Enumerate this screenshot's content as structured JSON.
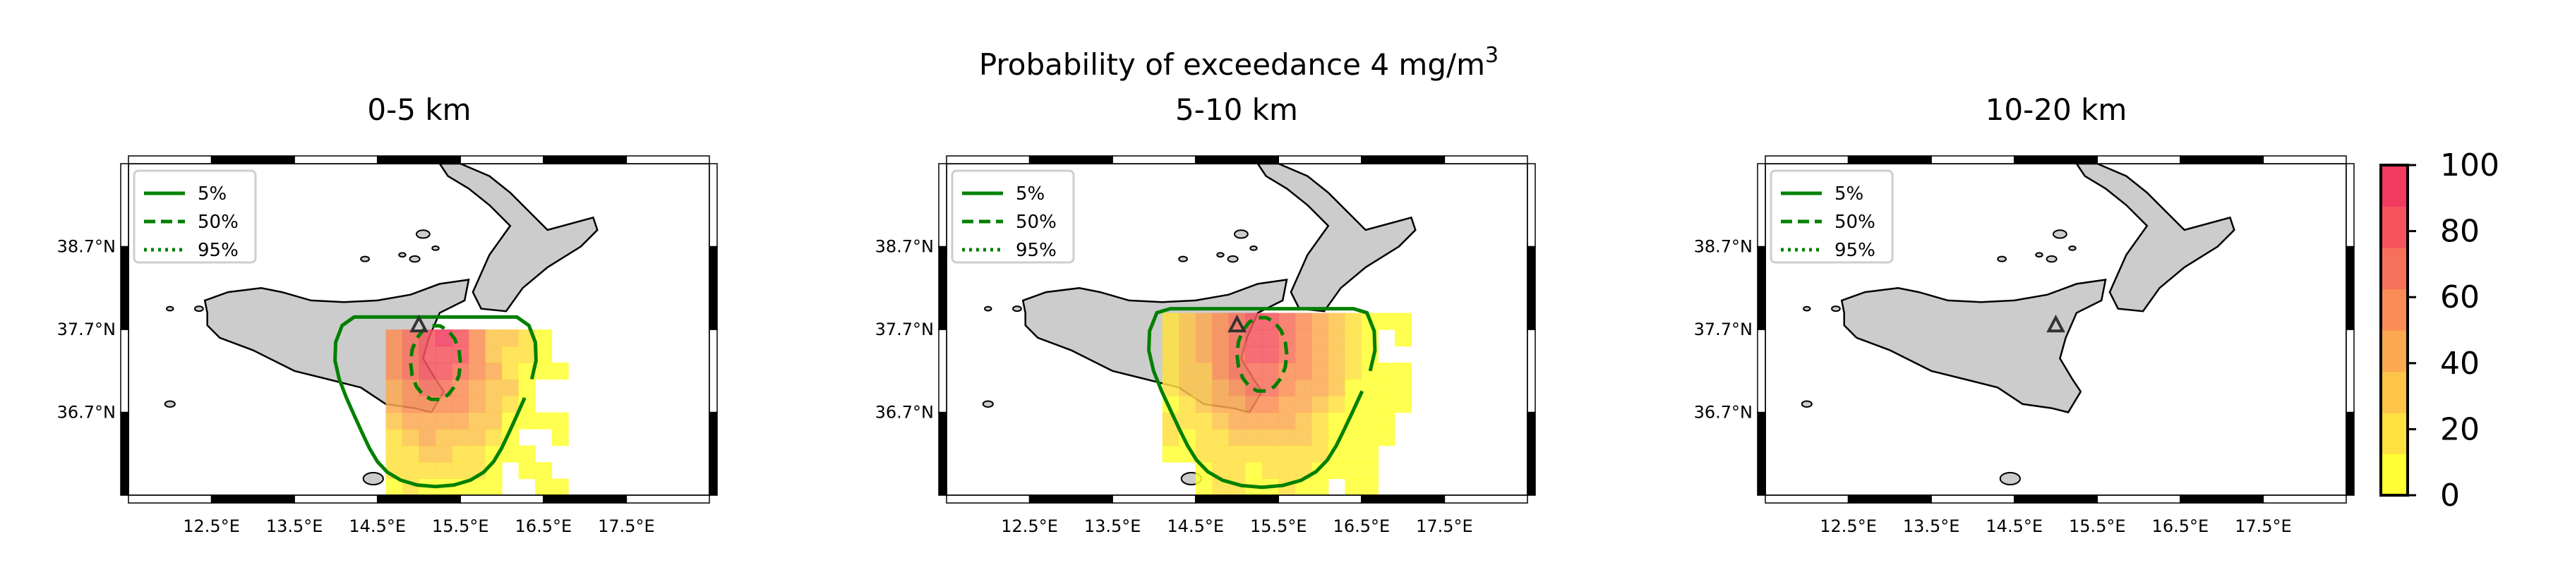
{
  "figure": {
    "title_main": "Probability of exceedance 4 mg/m",
    "title_sup": "3"
  },
  "colors": {
    "land": "#cccccc",
    "coast": "#000000",
    "contour": "#008000",
    "vent_marker": "#333333",
    "colormap": [
      "#ffff33",
      "#fee040",
      "#fdc44a",
      "#fca951",
      "#fa8d55",
      "#f7705a",
      "#f5545e",
      "#f33a5f"
    ]
  },
  "chart_data": [
    {
      "type": "heatmap",
      "title": "0-5 km",
      "x_ticks": [
        "12.5°E",
        "13.5°E",
        "14.5°E",
        "15.5°E",
        "16.5°E",
        "17.5°E"
      ],
      "y_ticks": [
        "38.7°N",
        "37.7°N",
        "36.7°N"
      ],
      "xlim": [
        11.5,
        18.5
      ],
      "ylim": [
        35.7,
        39.7
      ],
      "legend": {
        "position": "top-left",
        "entries": [
          {
            "label": "5%",
            "style": "solid"
          },
          {
            "label": "50%",
            "style": "dashed"
          },
          {
            "label": "95%",
            "style": "dotted"
          }
        ]
      },
      "field": {
        "peak": 85,
        "peak_lon": 15.2,
        "peak_lat": 37.5,
        "plume_x_spread": 0.8,
        "plume_y_spread": 1.2
      },
      "extent": {
        "lon_min": 14.6,
        "lon_max": 16.7,
        "lat_min": 35.7,
        "lat_max": 37.7
      },
      "vent": {
        "lon": 15.0,
        "lat": 37.75
      }
    },
    {
      "type": "heatmap",
      "title": "5-10 km",
      "x_ticks": [
        "12.5°E",
        "13.5°E",
        "14.5°E",
        "15.5°E",
        "16.5°E",
        "17.5°E"
      ],
      "y_ticks": [
        "38.7°N",
        "37.7°N",
        "36.7°N"
      ],
      "xlim": [
        11.5,
        18.5
      ],
      "ylim": [
        35.7,
        39.7
      ],
      "legend": {
        "position": "top-left",
        "entries": [
          {
            "label": "5%",
            "style": "solid"
          },
          {
            "label": "50%",
            "style": "dashed"
          },
          {
            "label": "95%",
            "style": "dotted"
          }
        ]
      },
      "field": {
        "peak": 80,
        "peak_lon": 15.3,
        "peak_lat": 37.6,
        "plume_x_spread": 0.9,
        "plume_y_spread": 1.3
      },
      "extent": {
        "lon_min": 14.1,
        "lon_max": 17.0,
        "lat_min": 35.7,
        "lat_max": 37.8
      },
      "vent": {
        "lon": 15.0,
        "lat": 37.75
      }
    },
    {
      "type": "heatmap",
      "title": "10-20 km",
      "x_ticks": [
        "12.5°E",
        "13.5°E",
        "14.5°E",
        "15.5°E",
        "16.5°E",
        "17.5°E"
      ],
      "y_ticks": [
        "38.7°N",
        "37.7°N",
        "36.7°N"
      ],
      "xlim": [
        11.5,
        18.5
      ],
      "ylim": [
        35.7,
        39.7
      ],
      "legend": {
        "position": "top-left",
        "entries": [
          {
            "label": "5%",
            "style": "solid"
          },
          {
            "label": "50%",
            "style": "dashed"
          },
          {
            "label": "95%",
            "style": "dotted"
          }
        ]
      },
      "field": {
        "peak": 0
      },
      "vent": {
        "lon": 15.0,
        "lat": 37.75
      }
    }
  ],
  "colorbar": {
    "min": 0,
    "max": 100,
    "ticks": [
      "0",
      "20",
      "40",
      "60",
      "80",
      "100"
    ]
  }
}
